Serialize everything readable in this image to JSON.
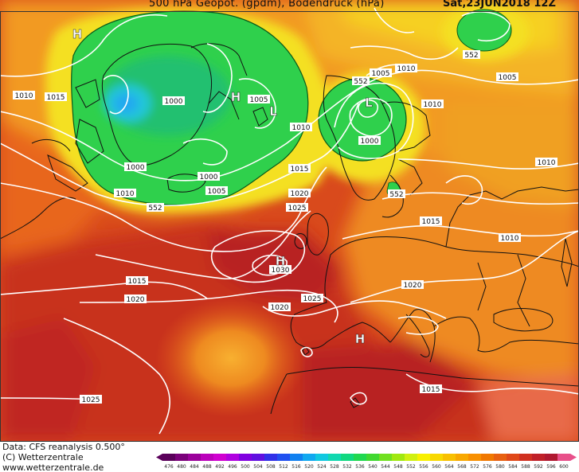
{
  "header": {
    "title": "500 hPa Geopot. (gpdm), Bodendruck (hPa)",
    "datetime": "Sat,23JUN2018 12Z"
  },
  "footer": {
    "data_source": "Data: CFS reanalysis 0.500°",
    "copyright": "(C) Wetterzentrale",
    "website": "www.wetterzentrale.de"
  },
  "isobar_labels": [
    {
      "text": "1010"
    },
    {
      "text": "1015"
    },
    {
      "text": "1000"
    },
    {
      "text": "1005"
    },
    {
      "text": "1010"
    },
    {
      "text": "1000"
    },
    {
      "text": "1010"
    },
    {
      "text": "1005"
    },
    {
      "text": "552"
    },
    {
      "text": "1000"
    },
    {
      "text": "1015"
    },
    {
      "text": "1005"
    },
    {
      "text": "1010"
    },
    {
      "text": "1010"
    },
    {
      "text": "1005"
    },
    {
      "text": "552"
    },
    {
      "text": "1000"
    },
    {
      "text": "1010"
    },
    {
      "text": "1020"
    },
    {
      "text": "552"
    },
    {
      "text": "1025"
    },
    {
      "text": "1015"
    },
    {
      "text": "1010"
    },
    {
      "text": "1030"
    },
    {
      "text": "1015"
    },
    {
      "text": "1020"
    },
    {
      "text": "1025"
    },
    {
      "text": "1020"
    },
    {
      "text": "1020"
    },
    {
      "text": "1025"
    },
    {
      "text": "1015"
    },
    {
      "text": "552"
    }
  ],
  "pressure_centers": [
    {
      "type": "H"
    },
    {
      "type": "H"
    },
    {
      "type": "L"
    },
    {
      "type": "L"
    },
    {
      "type": "H"
    },
    {
      "type": "H"
    }
  ],
  "legend": {
    "ticks": [
      "476",
      "480",
      "484",
      "488",
      "492",
      "496",
      "500",
      "504",
      "508",
      "512",
      "516",
      "520",
      "524",
      "528",
      "532",
      "536",
      "540",
      "544",
      "548",
      "552",
      "556",
      "560",
      "564",
      "568",
      "572",
      "576",
      "580",
      "584",
      "588",
      "592",
      "596",
      "600"
    ],
    "colors": [
      "#5a005a",
      "#7a007a",
      "#9a009a",
      "#bb00bb",
      "#d000d0",
      "#b000e0",
      "#8000e0",
      "#6010e0",
      "#3030e8",
      "#2050f0",
      "#1080f0",
      "#10a8f0",
      "#10c8e0",
      "#10d8b0",
      "#10d880",
      "#20d850",
      "#40d830",
      "#70e020",
      "#a0e810",
      "#d0f010",
      "#f8f000",
      "#f8d800",
      "#f8c000",
      "#f8a800",
      "#f89000",
      "#f07800",
      "#e86010",
      "#e04818",
      "#d03020",
      "#c02028",
      "#b01830",
      "#e8508a"
    ]
  },
  "colors": {
    "background_warm": "#d8401a",
    "ridge_red": "#c22a1e",
    "low_green": "#28d04a",
    "low_cyan": "#20c8c8",
    "yellow_band": "#f4e020",
    "orange_band": "#f4a020",
    "isobar": "#ffffff",
    "coastline": "#111111"
  }
}
